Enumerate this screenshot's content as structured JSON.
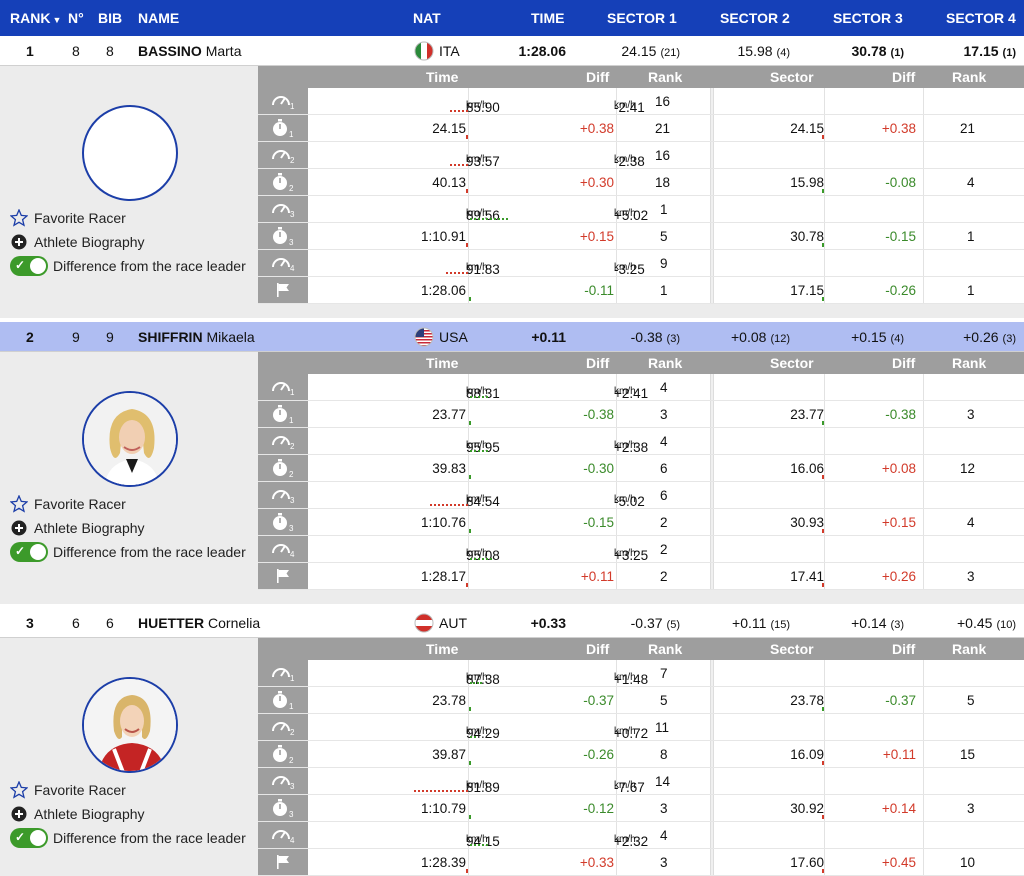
{
  "header": {
    "rank": "RANK",
    "num": "N°",
    "bib": "BIB",
    "name": "NAME",
    "nat": "NAT",
    "time": "TIME",
    "s1": "SECTOR 1",
    "s2": "SECTOR 2",
    "s3": "SECTOR 3",
    "s4": "SECTOR 4"
  },
  "table_headers": {
    "time": "Time",
    "diff": "Diff",
    "rank": "Rank",
    "sector": "Sector",
    "sdiff": "Diff",
    "srank": "Rank"
  },
  "options": {
    "favorite": "Favorite Racer",
    "bio": "Athlete Biography",
    "diff_toggle": "Difference from the race leader"
  },
  "unit": "km/h",
  "colors": {
    "header_bg": "#1540b8",
    "alt_row": "#afbdf2",
    "positive": "#d23a2a",
    "negative": "#3a8a2a"
  },
  "racers": [
    {
      "rank": "1",
      "num": "8",
      "bib": "8",
      "last": "BASSINO",
      "first": "Marta",
      "nat": "ITA",
      "flag": "italy-flag",
      "time": "1:28.06",
      "sectors": [
        {
          "v": "24.15",
          "r": "(21)"
        },
        {
          "v": "15.98",
          "r": "(4)"
        },
        {
          "v": "30.78",
          "r": "(1)",
          "bold": true
        },
        {
          "v": "17.15",
          "r": "(1)",
          "bold": true
        }
      ],
      "avatar": "empty",
      "rows": [
        {
          "icon": "speed-1",
          "speed": true,
          "time": "85.90",
          "diff": "-2.41",
          "dcolor": "",
          "rank": "16",
          "sector": "",
          "sdiff": "",
          "scolor": "",
          "srank": "",
          "mk": "r",
          "mw": 18
        },
        {
          "icon": "timer-1",
          "speed": false,
          "time": "24.15",
          "diff": "+0.38",
          "dcolor": "red",
          "rank": "21",
          "sector": "24.15",
          "sdiff": "+0.38",
          "scolor": "red",
          "srank": "21",
          "mk": "r",
          "mw": 0
        },
        {
          "icon": "speed-2",
          "speed": true,
          "time": "93.57",
          "diff": "-2.38",
          "dcolor": "",
          "rank": "16",
          "sector": "",
          "sdiff": "",
          "scolor": "",
          "srank": "",
          "mk": "r",
          "mw": 18
        },
        {
          "icon": "timer-2",
          "speed": false,
          "time": "40.13",
          "diff": "+0.30",
          "dcolor": "red",
          "rank": "18",
          "sector": "15.98",
          "sdiff": "-0.08",
          "scolor": "green",
          "srank": "4",
          "mk": "r",
          "mw": 0
        },
        {
          "icon": "speed-3",
          "speed": true,
          "time": "89.56",
          "diff": "+5.02",
          "dcolor": "",
          "rank": "1",
          "sector": "",
          "sdiff": "",
          "scolor": "",
          "srank": "",
          "mk": "g",
          "mw": 38
        },
        {
          "icon": "timer-3",
          "speed": false,
          "time": "1:10.91",
          "diff": "+0.15",
          "dcolor": "red",
          "rank": "5",
          "sector": "30.78",
          "sdiff": "-0.15",
          "scolor": "green",
          "srank": "1",
          "mk": "r",
          "mw": 0
        },
        {
          "icon": "speed-4",
          "speed": true,
          "time": "91.83",
          "diff": "-3.25",
          "dcolor": "",
          "rank": "9",
          "sector": "",
          "sdiff": "",
          "scolor": "",
          "srank": "",
          "mk": "r",
          "mw": 22
        },
        {
          "icon": "finish-flag",
          "speed": false,
          "time": "1:28.06",
          "diff": "-0.11",
          "dcolor": "green",
          "rank": "1",
          "sector": "17.15",
          "sdiff": "-0.26",
          "scolor": "green",
          "srank": "1",
          "mk": "g",
          "mw": 0
        }
      ]
    },
    {
      "rank": "2",
      "num": "9",
      "bib": "9",
      "last": "SHIFFRIN",
      "first": "Mikaela",
      "nat": "USA",
      "flag": "usa-flag",
      "time": "+0.11",
      "sectors": [
        {
          "v": "-0.38",
          "r": "(3)"
        },
        {
          "v": "+0.08",
          "r": "(12)"
        },
        {
          "v": "+0.15",
          "r": "(4)"
        },
        {
          "v": "+0.26",
          "r": "(3)"
        }
      ],
      "avatar": "photo-blonde",
      "rows": [
        {
          "icon": "speed-1",
          "speed": true,
          "time": "88.31",
          "diff": "+2.41",
          "dcolor": "",
          "rank": "4",
          "sector": "",
          "sdiff": "",
          "scolor": "",
          "srank": "",
          "mk": "g",
          "mw": 18
        },
        {
          "icon": "timer-1",
          "speed": false,
          "time": "23.77",
          "diff": "-0.38",
          "dcolor": "green",
          "rank": "3",
          "sector": "23.77",
          "sdiff": "-0.38",
          "scolor": "green",
          "srank": "3",
          "mk": "g",
          "mw": 0
        },
        {
          "icon": "speed-2",
          "speed": true,
          "time": "95.95",
          "diff": "+2.38",
          "dcolor": "",
          "rank": "4",
          "sector": "",
          "sdiff": "",
          "scolor": "",
          "srank": "",
          "mk": "g",
          "mw": 18
        },
        {
          "icon": "timer-2",
          "speed": false,
          "time": "39.83",
          "diff": "-0.30",
          "dcolor": "green",
          "rank": "6",
          "sector": "16.06",
          "sdiff": "+0.08",
          "scolor": "red",
          "srank": "12",
          "mk": "g",
          "mw": 0
        },
        {
          "icon": "speed-3",
          "speed": true,
          "time": "84.54",
          "diff": "-5.02",
          "dcolor": "",
          "rank": "6",
          "sector": "",
          "sdiff": "",
          "scolor": "",
          "srank": "",
          "mk": "r",
          "mw": 38
        },
        {
          "icon": "timer-3",
          "speed": false,
          "time": "1:10.76",
          "diff": "-0.15",
          "dcolor": "green",
          "rank": "2",
          "sector": "30.93",
          "sdiff": "+0.15",
          "scolor": "red",
          "srank": "4",
          "mk": "g",
          "mw": 0
        },
        {
          "icon": "speed-4",
          "speed": true,
          "time": "95.08",
          "diff": "+3.25",
          "dcolor": "",
          "rank": "2",
          "sector": "",
          "sdiff": "",
          "scolor": "",
          "srank": "",
          "mk": "g",
          "mw": 22
        },
        {
          "icon": "finish-flag",
          "speed": false,
          "time": "1:28.17",
          "diff": "+0.11",
          "dcolor": "red",
          "rank": "2",
          "sector": "17.41",
          "sdiff": "+0.26",
          "scolor": "red",
          "srank": "3",
          "mk": "r",
          "mw": 0
        }
      ]
    },
    {
      "rank": "3",
      "num": "6",
      "bib": "6",
      "last": "HUETTER",
      "first": "Cornelia",
      "nat": "AUT",
      "flag": "austria-flag",
      "time": "+0.33",
      "sectors": [
        {
          "v": "-0.37",
          "r": "(5)"
        },
        {
          "v": "+0.11",
          "r": "(15)"
        },
        {
          "v": "+0.14",
          "r": "(3)"
        },
        {
          "v": "+0.45",
          "r": "(10)"
        }
      ],
      "avatar": "photo-red-suit",
      "rows": [
        {
          "icon": "speed-1",
          "speed": true,
          "time": "87.38",
          "diff": "+1.48",
          "dcolor": "",
          "rank": "7",
          "sector": "",
          "sdiff": "",
          "scolor": "",
          "srank": "",
          "mk": "g",
          "mw": 12
        },
        {
          "icon": "timer-1",
          "speed": false,
          "time": "23.78",
          "diff": "-0.37",
          "dcolor": "green",
          "rank": "5",
          "sector": "23.78",
          "sdiff": "-0.37",
          "scolor": "green",
          "srank": "5",
          "mk": "g",
          "mw": 0
        },
        {
          "icon": "speed-2",
          "speed": true,
          "time": "94.29",
          "diff": "+0.72",
          "dcolor": "",
          "rank": "11",
          "sector": "",
          "sdiff": "",
          "scolor": "",
          "srank": "",
          "mk": "g",
          "mw": 6
        },
        {
          "icon": "timer-2",
          "speed": false,
          "time": "39.87",
          "diff": "-0.26",
          "dcolor": "green",
          "rank": "8",
          "sector": "16.09",
          "sdiff": "+0.11",
          "scolor": "red",
          "srank": "15",
          "mk": "g",
          "mw": 0
        },
        {
          "icon": "speed-3",
          "speed": true,
          "time": "81.89",
          "diff": "-7.67",
          "dcolor": "",
          "rank": "14",
          "sector": "",
          "sdiff": "",
          "scolor": "",
          "srank": "",
          "mk": "r",
          "mw": 54
        },
        {
          "icon": "timer-3",
          "speed": false,
          "time": "1:10.79",
          "diff": "-0.12",
          "dcolor": "green",
          "rank": "3",
          "sector": "30.92",
          "sdiff": "+0.14",
          "scolor": "red",
          "srank": "3",
          "mk": "g",
          "mw": 0
        },
        {
          "icon": "speed-4",
          "speed": true,
          "time": "94.15",
          "diff": "+2.32",
          "dcolor": "",
          "rank": "4",
          "sector": "",
          "sdiff": "",
          "scolor": "",
          "srank": "",
          "mk": "g",
          "mw": 18
        },
        {
          "icon": "finish-flag",
          "speed": false,
          "time": "1:28.39",
          "diff": "+0.33",
          "dcolor": "red",
          "rank": "3",
          "sector": "17.60",
          "sdiff": "+0.45",
          "scolor": "red",
          "srank": "10",
          "mk": "r",
          "mw": 0
        }
      ]
    }
  ]
}
